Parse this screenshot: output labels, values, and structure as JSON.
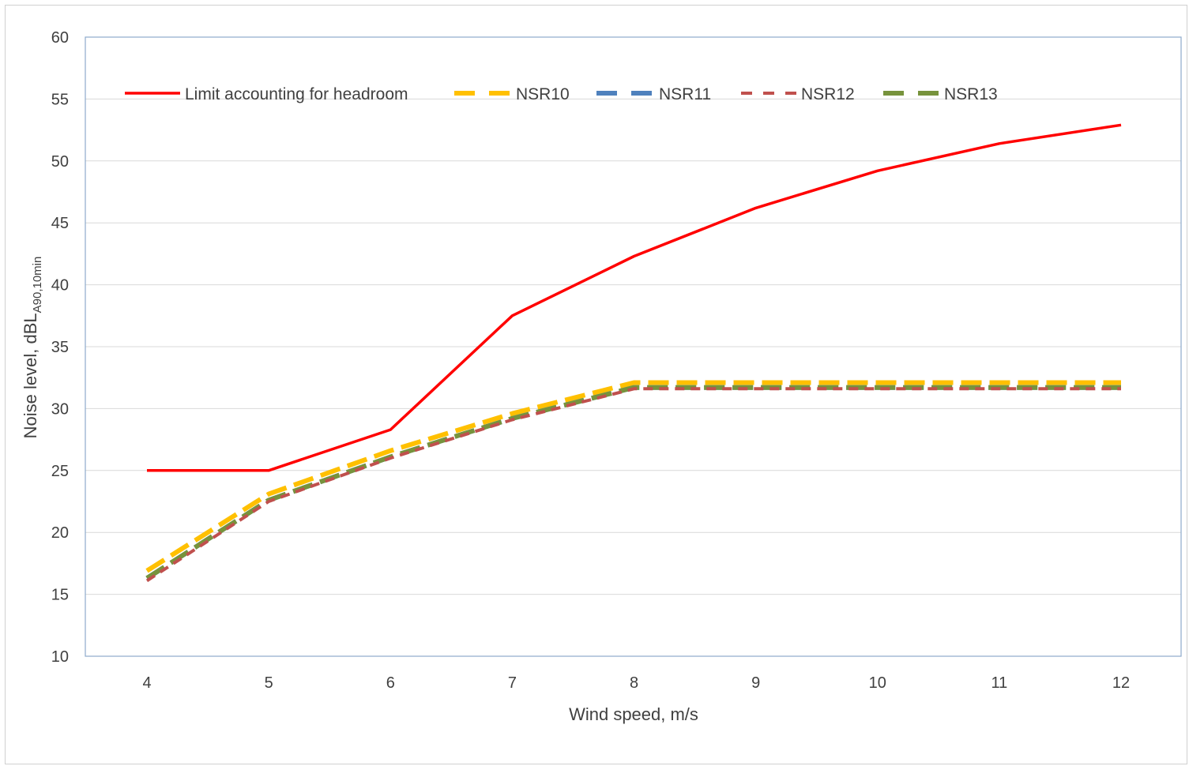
{
  "chart_data": {
    "type": "line",
    "title": "",
    "xlabel": "Wind speed, m/s",
    "ylabel_main": "Noise level, dBL",
    "ylabel_sub": "A90,10min",
    "xlim": [
      4,
      12
    ],
    "ylim": [
      10,
      60
    ],
    "x": [
      4,
      5,
      6,
      7,
      8,
      9,
      10,
      11,
      12
    ],
    "x_ticks": [
      "4",
      "5",
      "6",
      "7",
      "8",
      "9",
      "10",
      "11",
      "12"
    ],
    "y_ticks": [
      "10",
      "15",
      "20",
      "25",
      "30",
      "35",
      "40",
      "45",
      "50",
      "55",
      "60"
    ],
    "grid": true,
    "legend_position": "top",
    "series": [
      {
        "name": "Limit accounting for headroom",
        "color": "#ff0000",
        "dash": "solid",
        "values": [
          25.0,
          25.0,
          28.3,
          37.5,
          42.3,
          46.2,
          49.2,
          51.4,
          52.9
        ]
      },
      {
        "name": "NSR10",
        "color": "#ffc000",
        "dash": "long-dash",
        "values": [
          16.9,
          23.1,
          26.6,
          29.6,
          32.1,
          32.1,
          32.1,
          32.1,
          32.1
        ]
      },
      {
        "name": "NSR11",
        "color": "#4f81bd",
        "dash": "long-dash",
        "values": [
          16.3,
          22.6,
          26.1,
          29.2,
          31.7,
          31.7,
          31.7,
          31.7,
          31.7
        ]
      },
      {
        "name": "NSR12",
        "color": "#c0504d",
        "dash": "short-dash",
        "values": [
          16.1,
          22.5,
          26.0,
          29.1,
          31.6,
          31.6,
          31.6,
          31.6,
          31.6
        ]
      },
      {
        "name": "NSR13",
        "color": "#77933c",
        "dash": "long-dash",
        "values": [
          16.3,
          22.6,
          26.1,
          29.2,
          31.7,
          31.7,
          31.7,
          31.7,
          31.7
        ]
      }
    ]
  }
}
